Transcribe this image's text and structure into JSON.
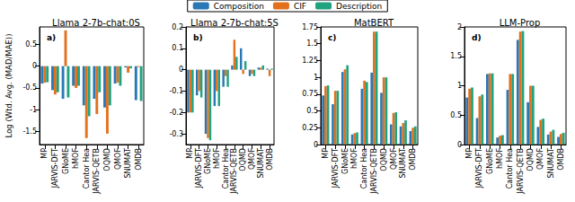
{
  "chart_data": [
    {
      "type": "bar",
      "title": "Llama 2-7b-chat:0S",
      "annotation": "a)",
      "y_label": "Log (Wtd. Avg. (MAD/MAE))",
      "categories": [
        "MP",
        "JARVIS-DFT",
        "GNoME",
        "hMOF",
        "Cantor Hea",
        "JARVIS-QETB",
        "OQMD",
        "QMOF",
        "SNUMAT",
        "OMDB"
      ],
      "series": [
        {
          "name": "Composition",
          "color": "#2b78b6",
          "values": [
            -0.4,
            -0.55,
            -0.75,
            -0.45,
            -0.9,
            -0.75,
            -0.95,
            -0.4,
            -0.03,
            -0.78
          ]
        },
        {
          "name": "CIF",
          "color": "#e2711d",
          "values": [
            -0.38,
            -0.65,
            0.82,
            -0.5,
            -1.65,
            -1.1,
            -1.55,
            -0.38,
            -0.15,
            -0.02
          ]
        },
        {
          "name": "Description",
          "color": "#21a37f",
          "values": [
            -0.37,
            -0.6,
            -0.72,
            -0.45,
            -1.15,
            -0.6,
            -0.9,
            -0.45,
            -0.05,
            -0.8
          ]
        }
      ],
      "ylim": [
        -1.8,
        0.9
      ],
      "yticks": [
        -1.5,
        -1,
        -0.5,
        0,
        0.5
      ],
      "grid": false,
      "legend": "top"
    },
    {
      "type": "bar",
      "title": "Llama 2-7b-chat:5S",
      "annotation": "b)",
      "categories": [
        "MP",
        "JARVIS-DFT",
        "GNoME",
        "hMOF",
        "Cantor Hea",
        "JARVIS-QETB",
        "OQMD",
        "QMOF",
        "SNUMAT",
        "OMDB"
      ],
      "series": [
        {
          "name": "Composition",
          "color": "#2b78b6",
          "values": [
            -0.2,
            -0.12,
            -0.3,
            -0.17,
            -0.08,
            0.02,
            0.1,
            -0.03,
            0.01,
            0.005
          ]
        },
        {
          "name": "CIF",
          "color": "#e2711d",
          "values": [
            -0.2,
            -0.1,
            -0.32,
            -0.1,
            -0.03,
            0.14,
            -0.02,
            -0.02,
            0.01,
            -0.03
          ]
        },
        {
          "name": "Description",
          "color": "#21a37f",
          "values": [
            -0.2,
            -0.13,
            -0.33,
            -0.17,
            -0.08,
            0.06,
            0.04,
            -0.03,
            0.02,
            0.005
          ]
        }
      ],
      "ylim": [
        -0.35,
        0.2
      ],
      "yticks": [
        -0.3,
        -0.2,
        -0.1,
        0,
        0.1,
        0.2
      ],
      "grid": false
    },
    {
      "type": "bar",
      "title": "MatBERT",
      "annotation": "c)",
      "categories": [
        "MP",
        "JARVIS-DFT",
        "GNoME",
        "hMOF",
        "Cantor Hea",
        "JARVIS-QETB",
        "OQMD",
        "QMOF",
        "SNUMAT",
        "OMDB"
      ],
      "series": [
        {
          "name": "Composition",
          "color": "#2b78b6",
          "values": [
            0.73,
            0.6,
            1.08,
            0.15,
            0.83,
            1.07,
            0.77,
            0.3,
            0.27,
            0.2
          ]
        },
        {
          "name": "CIF",
          "color": "#e2711d",
          "values": [
            0.87,
            0.8,
            1.12,
            0.17,
            0.95,
            1.68,
            1.0,
            0.47,
            0.32,
            0.25
          ]
        },
        {
          "name": "Description",
          "color": "#21a37f",
          "values": [
            0.88,
            0.8,
            1.18,
            0.18,
            0.93,
            1.68,
            1.0,
            0.48,
            0.36,
            0.27
          ]
        }
      ],
      "ylim": [
        0,
        1.75
      ],
      "yticks": [
        0,
        0.25,
        0.5,
        0.75,
        1,
        1.25,
        1.5,
        1.75
      ],
      "grid": false
    },
    {
      "type": "bar",
      "title": "LLM-Prop",
      "annotation": "d)",
      "categories": [
        "MP",
        "JARVIS-DFT",
        "GNoME",
        "hMOF",
        "Cantor Hea",
        "JARVIS-QETB",
        "OQMD",
        "QMOF",
        "SNUMAT",
        "OMDB"
      ],
      "series": [
        {
          "name": "Composition",
          "color": "#2b78b6",
          "values": [
            0.8,
            0.45,
            1.2,
            0.12,
            0.93,
            1.78,
            0.72,
            0.3,
            0.17,
            0.13
          ]
        },
        {
          "name": "CIF",
          "color": "#e2711d",
          "values": [
            0.95,
            0.82,
            1.21,
            0.15,
            1.2,
            1.92,
            1.0,
            0.42,
            0.22,
            0.18
          ]
        },
        {
          "name": "Description",
          "color": "#21a37f",
          "values": [
            0.97,
            0.85,
            1.21,
            0.16,
            1.2,
            1.93,
            1.0,
            0.44,
            0.25,
            0.2
          ]
        }
      ],
      "ylim": [
        0,
        2
      ],
      "yticks": [
        0,
        0.5,
        1,
        1.5,
        2
      ],
      "grid": false
    }
  ]
}
